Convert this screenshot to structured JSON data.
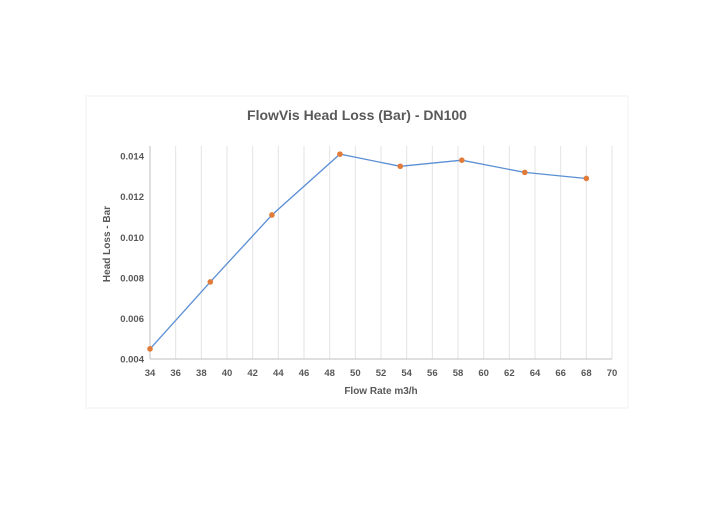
{
  "chart_data": {
    "type": "line",
    "title": "FlowVis Head Loss  (Bar) - DN100",
    "xlabel": "Flow Rate m3/h",
    "ylabel": "Head Loss - Bar",
    "xlim": [
      34,
      70
    ],
    "ylim": [
      0.004,
      0.0145
    ],
    "x_ticks": [
      34,
      36,
      38,
      40,
      42,
      44,
      46,
      48,
      50,
      52,
      54,
      56,
      58,
      60,
      62,
      64,
      66,
      68,
      70
    ],
    "y_ticks": [
      "0.004",
      "0.006",
      "0.008",
      "0.010",
      "0.012",
      "0.014"
    ],
    "grid": "vertical",
    "legend": "none",
    "series": [
      {
        "x": [
          34.0,
          38.7,
          43.5,
          48.8,
          53.5,
          58.3,
          63.2,
          68.0
        ],
        "y": [
          0.0045,
          0.0078,
          0.0111,
          0.0141,
          0.0135,
          0.0138,
          0.0132,
          0.0129
        ],
        "line_color": "#5b8fd4",
        "marker_color": "#e07b39"
      }
    ]
  }
}
